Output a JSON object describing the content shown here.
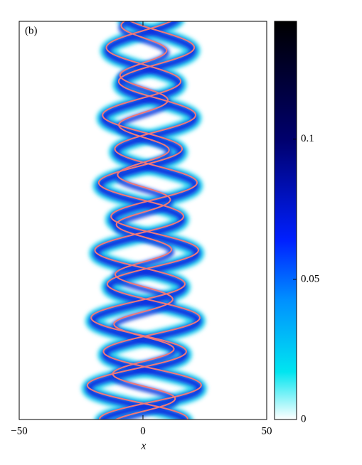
{
  "chart_data": {
    "type": "heatmap",
    "panel_label": "(b)",
    "x_label": "x",
    "xlim": [
      -50,
      50
    ],
    "xticks": [
      {
        "value": -50,
        "label": "−50"
      },
      0,
      50
    ],
    "colorbar": {
      "lim": [
        0,
        0.142
      ],
      "ticks": [
        0,
        0.05,
        0.1
      ]
    }
  }
}
